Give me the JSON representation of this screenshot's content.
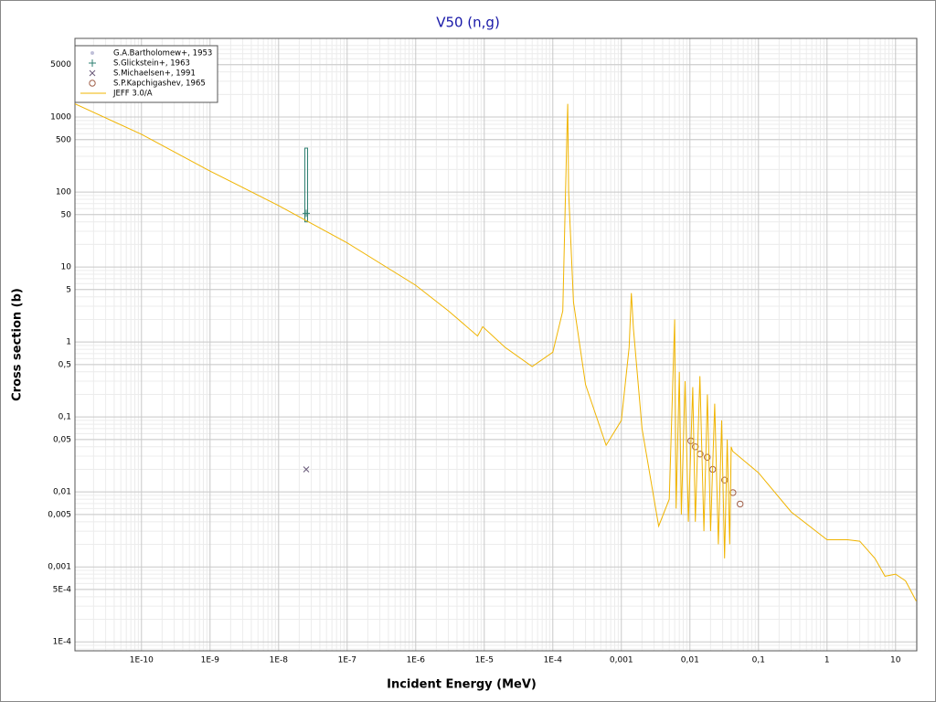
{
  "chart_data": {
    "type": "line",
    "title": "V50 (n,g)",
    "x_label": "Incident Energy (MeV)",
    "y_label": "Cross section (b)",
    "log_x": true,
    "log_y": true,
    "grid": true,
    "legend": "upper left",
    "xlim": [
      1.07e-11,
      20.4
    ],
    "ylim": [
      7.6e-05,
      11200
    ],
    "xticks": [
      {
        "value": 1e-10,
        "label": "1E-10"
      },
      {
        "value": 1e-09,
        "label": "1E-9"
      },
      {
        "value": 1e-08,
        "label": "1E-8"
      },
      {
        "value": 1e-07,
        "label": "1E-7"
      },
      {
        "value": 1e-06,
        "label": "1E-6"
      },
      {
        "value": 1e-05,
        "label": "1E-5"
      },
      {
        "value": 0.0001,
        "label": "1E-4"
      },
      {
        "value": 0.001,
        "label": "0,001"
      },
      {
        "value": 0.01,
        "label": "0,01"
      },
      {
        "value": 0.1,
        "label": "0,1"
      },
      1,
      10
    ],
    "yticks": [
      5000,
      1000,
      500,
      100,
      50,
      10,
      5,
      1,
      {
        "value": 0.5,
        "label": "0,5"
      },
      {
        "value": 0.1,
        "label": "0,1"
      },
      {
        "value": 0.05,
        "label": "0,05"
      },
      {
        "value": 0.01,
        "label": "0,01"
      },
      {
        "value": 0.005,
        "label": "0,005"
      },
      {
        "value": 0.001,
        "label": "0,001"
      },
      {
        "value": 0.0005,
        "label": "5E-4"
      },
      {
        "value": 0.0001,
        "label": "1E-4"
      }
    ],
    "series": [
      {
        "name": "G.A.Bartholomew+, 1953",
        "color": "#c0c0d8",
        "marker": "dot",
        "x": [],
        "values": []
      },
      {
        "name": "S.Glickstein+, 1963",
        "color": "#2e7f70",
        "marker": "plus",
        "x": [
          2.53e-08
        ],
        "values": [
          52
        ],
        "yerr_minus": [
          12
        ],
        "yerr_plus": [
          333
        ]
      },
      {
        "name": "S.Michaelsen+, 1991",
        "color": "#6a5a7a",
        "marker": "x",
        "x": [
          2.53e-08
        ],
        "values": [
          0.02
        ]
      },
      {
        "name": "S.P.Kapchigashev, 1965",
        "color": "#a0604a",
        "marker": "circle",
        "x": [
          0.0103,
          0.012,
          0.0141,
          0.0179,
          0.0215,
          0.0321,
          0.0424,
          0.054
        ],
        "values": [
          0.048,
          0.04,
          0.032,
          0.029,
          0.02,
          0.0144,
          0.0098,
          0.0069
        ]
      },
      {
        "name": "JEFF 3.0/A",
        "color": "#f0b400",
        "x": [
          1.07e-11,
          1e-10,
          1e-09,
          1e-08,
          1e-07,
          1e-06,
          3e-06,
          8e-06,
          9.5e-06,
          2e-05,
          5e-05,
          0.0001,
          0.00014,
          0.00016,
          0.000165,
          0.00017,
          0.0002,
          0.0003,
          0.0006,
          0.001,
          0.0013,
          0.0014,
          0.0015,
          0.002,
          0.0035,
          0.005,
          0.006,
          0.0063,
          0.007,
          0.0075,
          0.0085,
          0.0095,
          0.011,
          0.012,
          0.014,
          0.016,
          0.018,
          0.02,
          0.023,
          0.026,
          0.029,
          0.032,
          0.035,
          0.038,
          0.04,
          0.042,
          0.1,
          0.3,
          1,
          2,
          3,
          5,
          7,
          10,
          14,
          20
        ],
        "values": [
          1500,
          590,
          190,
          66,
          21,
          5.7,
          2.6,
          1.2,
          1.6,
          0.85,
          0.47,
          0.73,
          2.6,
          540,
          1500,
          100,
          3.4,
          0.27,
          0.042,
          0.09,
          0.85,
          4.5,
          1.5,
          0.07,
          0.0035,
          0.008,
          2,
          0.006,
          0.4,
          0.005,
          0.3,
          0.004,
          0.25,
          0.004,
          0.35,
          0.003,
          0.2,
          0.003,
          0.15,
          0.002,
          0.09,
          0.0013,
          0.05,
          0.002,
          0.04,
          0.035,
          0.018,
          0.0054,
          0.0023,
          0.0023,
          0.0022,
          0.0013,
          0.00075,
          0.0008,
          0.00065,
          0.00035
        ]
      }
    ]
  }
}
